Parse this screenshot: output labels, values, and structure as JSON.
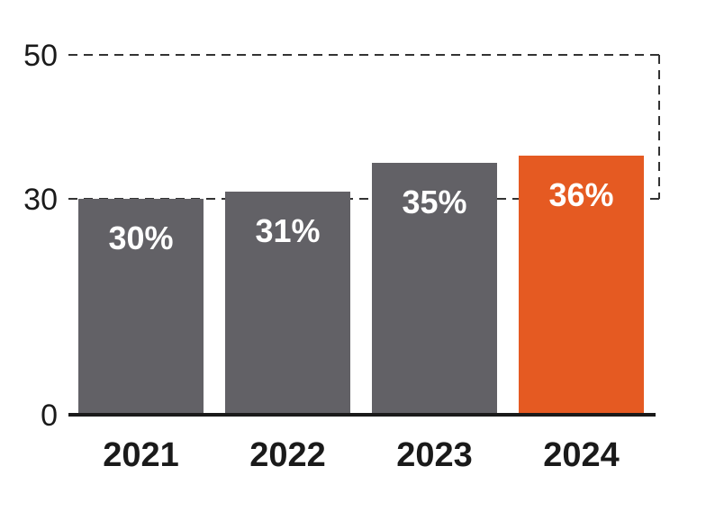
{
  "chart_data": {
    "type": "bar",
    "title": "",
    "xlabel": "",
    "ylabel": "",
    "categories": [
      "2021",
      "2022",
      "2023",
      "2024"
    ],
    "values": [
      30,
      31,
      35,
      36
    ],
    "value_labels": [
      "30%",
      "31%",
      "35%",
      "36%"
    ],
    "yticks": [
      0,
      30,
      50
    ],
    "ytick_labels": [
      "0",
      "30",
      "50"
    ],
    "ylim": [
      0,
      50
    ],
    "grid": false,
    "reference_lines": [
      30,
      50
    ],
    "colors": {
      "bar": "#626166",
      "highlight": "#e55a22",
      "axis": "#1a1a1a",
      "reference": "#333333"
    },
    "highlight_index": 3
  }
}
